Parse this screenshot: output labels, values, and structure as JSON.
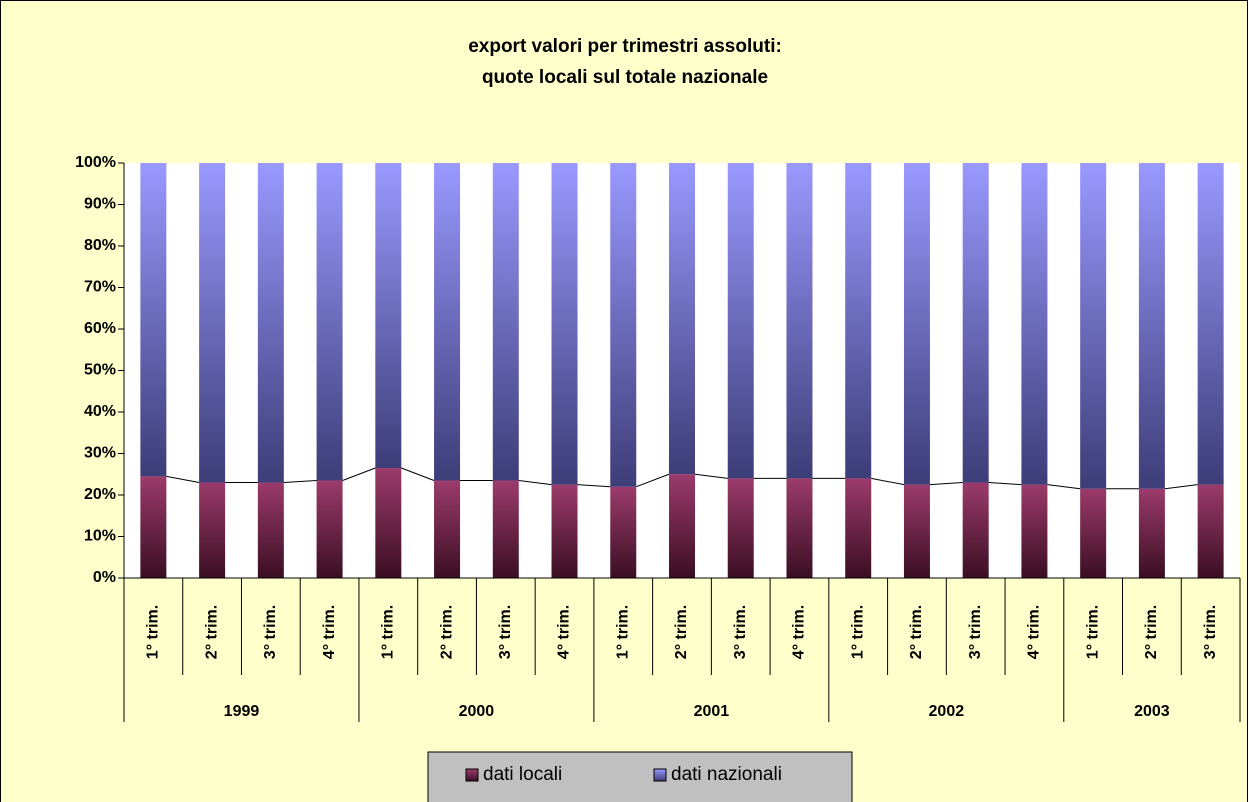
{
  "chart_data": {
    "type": "stacked_bar",
    "title": [
      "export valori per trimestri assoluti:",
      "quote locali sul totale nazionale"
    ],
    "groups": [
      {
        "label": "1999",
        "categories": [
          "1° trim.",
          "2° trim.",
          "3° trim.",
          "4° trim."
        ]
      },
      {
        "label": "2000",
        "categories": [
          "1° trim.",
          "2° trim.",
          "3° trim.",
          "4° trim."
        ]
      },
      {
        "label": "2001",
        "categories": [
          "1° trim.",
          "2° trim.",
          "3° trim.",
          "4° trim."
        ]
      },
      {
        "label": "2002",
        "categories": [
          "1° trim.",
          "2° trim.",
          "3° trim.",
          "4° trim."
        ]
      },
      {
        "label": "2003",
        "categories": [
          "1° trim.",
          "2° trim.",
          "3° trim."
        ]
      }
    ],
    "series": [
      {
        "name": "dati locali",
        "color": "#8e3462",
        "values": [
          24.5,
          23,
          23,
          23.5,
          26.5,
          23.5,
          23.5,
          22.5,
          22,
          25,
          24,
          24,
          24,
          22.5,
          23,
          22.5,
          21.5,
          21.5,
          22.5
        ]
      },
      {
        "name": "dati nazionali",
        "color": "#9999ff",
        "values": [
          75.5,
          77,
          77,
          76.5,
          73.5,
          76.5,
          76.5,
          77.5,
          78,
          75,
          76,
          76,
          76,
          77.5,
          77,
          77.5,
          78.5,
          78.5,
          77.5
        ]
      }
    ],
    "ylim": [
      0,
      100
    ],
    "yticks": [
      {
        "value": 0,
        "label": "0%"
      },
      {
        "value": 10,
        "label": "10%"
      },
      {
        "value": 20,
        "label": "20%"
      },
      {
        "value": 30,
        "label": "30%"
      },
      {
        "value": 40,
        "label": "40%"
      },
      {
        "value": 50,
        "label": "50%"
      },
      {
        "value": 60,
        "label": "60%"
      },
      {
        "value": 70,
        "label": "70%"
      },
      {
        "value": 80,
        "label": "80%"
      },
      {
        "value": 90,
        "label": "90%"
      },
      {
        "value": 100,
        "label": "100%"
      }
    ],
    "series_lines": true
  }
}
